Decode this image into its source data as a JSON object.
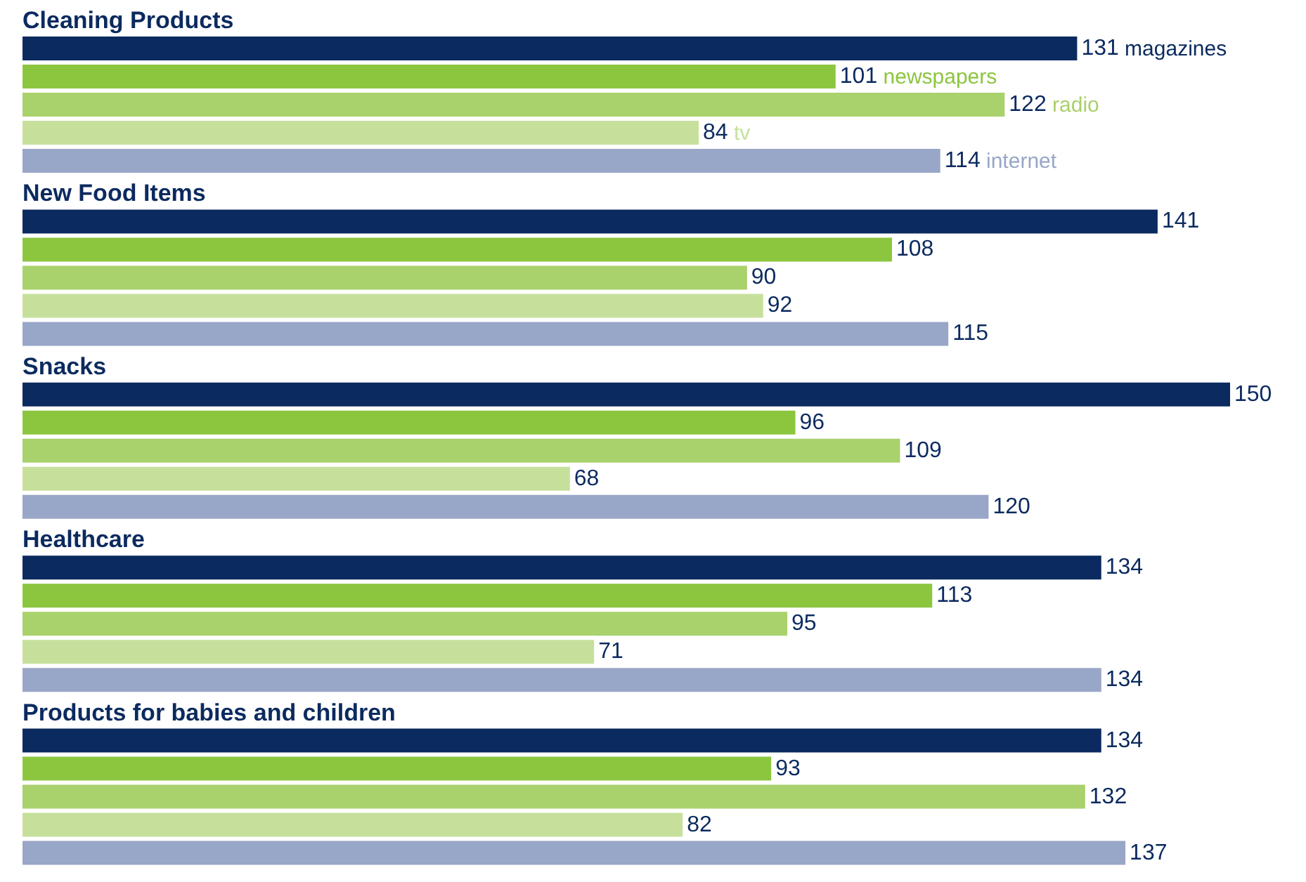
{
  "chart_data": {
    "type": "bar",
    "orientation": "horizontal",
    "data_labels": true,
    "categories": [
      "Cleaning Products",
      "New Food Items",
      "Snacks",
      "Healthcare",
      "Products for babies and children"
    ],
    "series": [
      {
        "name": "magazines",
        "color": "#0b2a5f",
        "values": [
          131,
          141,
          150,
          134,
          134
        ]
      },
      {
        "name": "newspapers",
        "color": "#8cc63f",
        "values": [
          101,
          108,
          96,
          113,
          93
        ]
      },
      {
        "name": "radio",
        "color": "#a9d16c",
        "values": [
          122,
          90,
          109,
          95,
          132
        ]
      },
      {
        "name": "tv",
        "color": "#c6e09c",
        "values": [
          84,
          92,
          68,
          71,
          82
        ]
      },
      {
        "name": "internet",
        "color": "#98a6c7",
        "values": [
          114,
          115,
          120,
          134,
          137
        ]
      }
    ]
  }
}
